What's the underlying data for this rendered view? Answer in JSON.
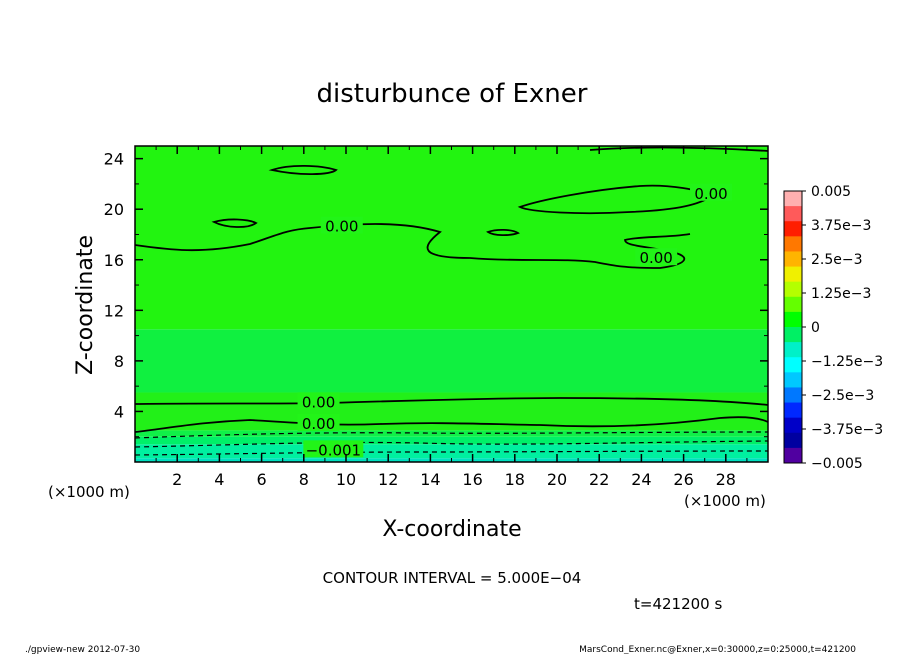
{
  "chart_data": {
    "type": "heatmap",
    "title": "disturbunce of Exner",
    "xlabel": "X-coordinate",
    "ylabel": "Z-coordinate",
    "x_unit_label": "(×1000 m)",
    "x_unit_label_right": "(×1000 m)",
    "xlim": [
      0,
      30
    ],
    "ylim": [
      0,
      25
    ],
    "x_ticks": [
      "2",
      "4",
      "6",
      "8",
      "10",
      "12",
      "14",
      "16",
      "18",
      "20",
      "22",
      "24",
      "26",
      "28"
    ],
    "y_ticks": [
      "4",
      "8",
      "12",
      "16",
      "20",
      "24"
    ],
    "contour_labels": [
      {
        "text": "0.00",
        "x": 27.3,
        "y": 21.3
      },
      {
        "text": "0.00",
        "x": 9.8,
        "y": 18.7
      },
      {
        "text": "0.00",
        "x": 24.7,
        "y": 16.2
      },
      {
        "text": "0.00",
        "x": 8.7,
        "y": 4.8
      },
      {
        "text": "0.00",
        "x": 8.7,
        "y": 3.1
      },
      {
        "text": "−0.001",
        "x": 9.4,
        "y": 1.0
      }
    ],
    "colorbar": {
      "labels": [
        "0.005",
        "3.75e−3",
        "2.5e−3",
        "1.25e−3",
        "0",
        "−1.25e−3",
        "−2.5e−3",
        "−3.75e−3",
        "−0.005"
      ],
      "levels": [
        0.005,
        0.00375,
        0.0025,
        0.00125,
        0,
        -0.00125,
        -0.0025,
        -0.00375,
        -0.005
      ],
      "colors": [
        "#ffb0b0",
        "#ff5a5a",
        "#ff1e00",
        "#ff7800",
        "#ffb400",
        "#f0f000",
        "#b4ff00",
        "#64ff00",
        "#00ff00",
        "#00f064",
        "#00f0c8",
        "#00ffff",
        "#00c8ff",
        "#0078ff",
        "#0028ff",
        "#0000c8",
        "#0000a0",
        "#5000a0"
      ]
    },
    "bands_bottom_to_top": [
      {
        "from": 0,
        "to": 0.3,
        "color": "#00e0c0"
      },
      {
        "from": 0.3,
        "to": 1.4,
        "color": "#00f0a0"
      },
      {
        "from": 1.4,
        "to": 2.0,
        "color": "#00f068"
      },
      {
        "from": 2.0,
        "to": 2.5,
        "color": "#10f048"
      },
      {
        "from": 2.5,
        "to": 5.5,
        "color": "#22f018"
      },
      {
        "from": 5.5,
        "to": 10.5,
        "color": "#10f040"
      },
      {
        "from": 10.5,
        "to": 25,
        "color": "#22f410"
      }
    ]
  },
  "contour_interval": "CONTOUR INTERVAL = 5.000E−04",
  "time": "t=421200 s",
  "footer_left": "./gpview-new  2012-07-30",
  "footer_right": "MarsCond_Exner.nc@Exner,x=0:30000,z=0:25000,t=421200"
}
